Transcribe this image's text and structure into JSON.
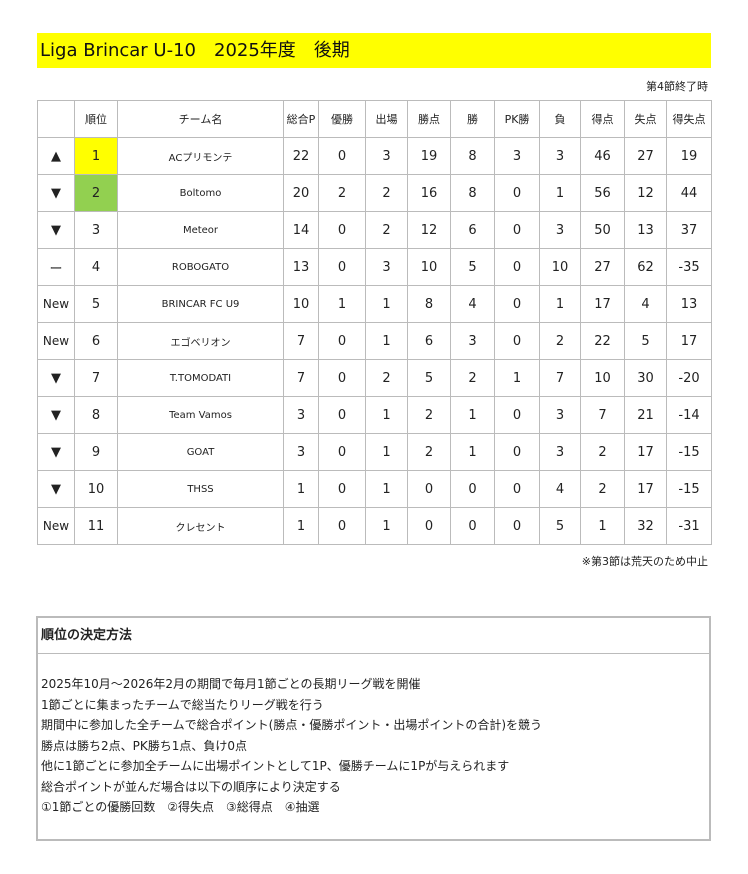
{
  "title": "Liga Brincar U-10　2025年度　後期",
  "as_of": "第4節終了時",
  "colors": {
    "title_bg": "#ffff00",
    "rank1": "#ffff00",
    "rank2": "#92d050"
  },
  "table": {
    "headers": [
      "",
      "順位",
      "チーム名",
      "総合P",
      "優勝",
      "出場",
      "勝点",
      "勝",
      "PK勝",
      "負",
      "得点",
      "失点",
      "得失点"
    ],
    "rows": [
      [
        "▲",
        "1",
        "ACプリモンテ",
        "22",
        "0",
        "3",
        "19",
        "8",
        "3",
        "3",
        "46",
        "27",
        "19"
      ],
      [
        "▼",
        "2",
        "Boltomo",
        "20",
        "2",
        "2",
        "16",
        "8",
        "0",
        "1",
        "56",
        "12",
        "44"
      ],
      [
        "▼",
        "3",
        "Meteor",
        "14",
        "0",
        "2",
        "12",
        "6",
        "0",
        "3",
        "50",
        "13",
        "37"
      ],
      [
        "ー",
        "4",
        "ROBOGATO",
        "13",
        "0",
        "3",
        "10",
        "5",
        "0",
        "10",
        "27",
        "62",
        "-35"
      ],
      [
        "New",
        "5",
        "BRINCAR FC U9",
        "10",
        "1",
        "1",
        "8",
        "4",
        "0",
        "1",
        "17",
        "4",
        "13"
      ],
      [
        "New",
        "6",
        "エゴベリオン",
        "7",
        "0",
        "1",
        "6",
        "3",
        "0",
        "2",
        "22",
        "5",
        "17"
      ],
      [
        "▼",
        "7",
        "T.TOMODATI",
        "7",
        "0",
        "2",
        "5",
        "2",
        "1",
        "7",
        "10",
        "30",
        "-20"
      ],
      [
        "▼",
        "8",
        "Team Vamos",
        "3",
        "0",
        "1",
        "2",
        "1",
        "0",
        "3",
        "7",
        "21",
        "-14"
      ],
      [
        "▼",
        "9",
        "GOAT",
        "3",
        "0",
        "1",
        "2",
        "1",
        "0",
        "3",
        "2",
        "17",
        "-15"
      ],
      [
        "▼",
        "10",
        "THSS",
        "1",
        "0",
        "1",
        "0",
        "0",
        "0",
        "4",
        "2",
        "17",
        "-15"
      ],
      [
        "New",
        "11",
        "クレセント",
        "1",
        "0",
        "1",
        "0",
        "0",
        "0",
        "5",
        "1",
        "32",
        "-31"
      ]
    ]
  },
  "footnote": "※第3節は荒天のため中止",
  "rules": {
    "heading": "順位の決定方法",
    "lines": [
      "2025年10月～2026年2月の期間で毎月1節ごとの長期リーグ戦を開催",
      "1節ごとに集まったチームで総当たりリーグ戦を行う",
      "期間中に参加した全チームで総合ポイント(勝点・優勝ポイント・出場ポイントの合計)を競う",
      "勝点は勝ち2点、PK勝ち1点、負け0点",
      "他に1節ごとに参加全チームに出場ポイントとして1P、優勝チームに1Pが与えられます",
      "総合ポイントが並んだ場合は以下の順序により決定する",
      "①1節ごとの優勝回数　②得失点　③総得点　④抽選"
    ]
  }
}
